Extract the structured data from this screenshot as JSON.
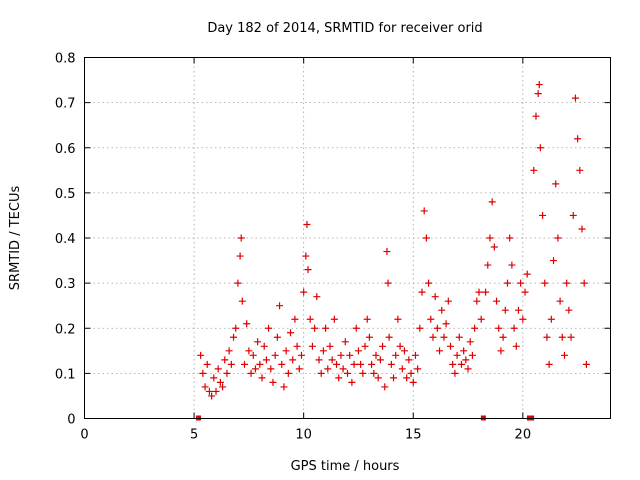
{
  "chart_data": {
    "type": "scatter",
    "title": "Day 182 of 2014, SRMTID for receiver orid",
    "xlabel": "GPS time / hours",
    "ylabel": "SRMTID / TECUs",
    "xlim": [
      0,
      24
    ],
    "ylim": [
      0,
      0.8
    ],
    "xticks": [
      0,
      5,
      10,
      15,
      20
    ],
    "yticks": [
      0,
      0.1,
      0.2,
      0.3,
      0.4,
      0.5,
      0.6,
      0.7,
      0.8
    ],
    "xtick_labels": [
      "0",
      "5",
      "10",
      "15",
      "20"
    ],
    "ytick_labels": [
      "0",
      "0.1",
      "0.2",
      "0.3",
      "0.4",
      "0.5",
      "0.6",
      "0.7",
      "0.8"
    ],
    "grid": true,
    "marker": "+",
    "color": "#e00000",
    "data_gaps": [
      [
        5.2,
        0
      ],
      [
        18.2,
        0
      ],
      [
        20.3,
        0
      ],
      [
        20.4,
        0
      ]
    ],
    "points": [
      [
        5.3,
        0.14
      ],
      [
        5.4,
        0.1
      ],
      [
        5.5,
        0.07
      ],
      [
        5.6,
        0.12
      ],
      [
        5.7,
        0.06
      ],
      [
        5.8,
        0.05
      ],
      [
        5.9,
        0.09
      ],
      [
        6.0,
        0.06
      ],
      [
        6.1,
        0.11
      ],
      [
        6.2,
        0.08
      ],
      [
        6.3,
        0.07
      ],
      [
        6.4,
        0.13
      ],
      [
        6.5,
        0.1
      ],
      [
        6.6,
        0.15
      ],
      [
        6.7,
        0.12
      ],
      [
        6.8,
        0.18
      ],
      [
        6.9,
        0.2
      ],
      [
        7.0,
        0.3
      ],
      [
        7.1,
        0.36
      ],
      [
        7.15,
        0.4
      ],
      [
        7.2,
        0.26
      ],
      [
        7.3,
        0.12
      ],
      [
        7.4,
        0.21
      ],
      [
        7.5,
        0.15
      ],
      [
        7.6,
        0.1
      ],
      [
        7.7,
        0.14
      ],
      [
        7.8,
        0.11
      ],
      [
        7.9,
        0.17
      ],
      [
        8.0,
        0.12
      ],
      [
        8.1,
        0.09
      ],
      [
        8.2,
        0.16
      ],
      [
        8.3,
        0.13
      ],
      [
        8.4,
        0.2
      ],
      [
        8.5,
        0.11
      ],
      [
        8.6,
        0.08
      ],
      [
        8.7,
        0.14
      ],
      [
        8.8,
        0.18
      ],
      [
        8.9,
        0.25
      ],
      [
        9.0,
        0.12
      ],
      [
        9.1,
        0.07
      ],
      [
        9.2,
        0.15
      ],
      [
        9.3,
        0.1
      ],
      [
        9.4,
        0.19
      ],
      [
        9.5,
        0.13
      ],
      [
        9.6,
        0.22
      ],
      [
        9.7,
        0.16
      ],
      [
        9.8,
        0.11
      ],
      [
        9.9,
        0.14
      ],
      [
        10.0,
        0.28
      ],
      [
        10.1,
        0.36
      ],
      [
        10.15,
        0.43
      ],
      [
        10.2,
        0.33
      ],
      [
        10.3,
        0.22
      ],
      [
        10.4,
        0.16
      ],
      [
        10.5,
        0.2
      ],
      [
        10.6,
        0.27
      ],
      [
        10.7,
        0.13
      ],
      [
        10.8,
        0.1
      ],
      [
        10.9,
        0.15
      ],
      [
        11.0,
        0.2
      ],
      [
        11.1,
        0.11
      ],
      [
        11.2,
        0.16
      ],
      [
        11.3,
        0.13
      ],
      [
        11.4,
        0.22
      ],
      [
        11.5,
        0.12
      ],
      [
        11.6,
        0.09
      ],
      [
        11.7,
        0.14
      ],
      [
        11.8,
        0.11
      ],
      [
        11.9,
        0.17
      ],
      [
        12.0,
        0.1
      ],
      [
        12.1,
        0.14
      ],
      [
        12.2,
        0.08
      ],
      [
        12.3,
        0.12
      ],
      [
        12.4,
        0.2
      ],
      [
        12.5,
        0.15
      ],
      [
        12.6,
        0.12
      ],
      [
        12.7,
        0.1
      ],
      [
        12.8,
        0.16
      ],
      [
        12.9,
        0.22
      ],
      [
        13.0,
        0.18
      ],
      [
        13.1,
        0.12
      ],
      [
        13.2,
        0.1
      ],
      [
        13.3,
        0.14
      ],
      [
        13.4,
        0.09
      ],
      [
        13.5,
        0.13
      ],
      [
        13.6,
        0.16
      ],
      [
        13.7,
        0.07
      ],
      [
        13.8,
        0.37
      ],
      [
        13.85,
        0.3
      ],
      [
        13.9,
        0.18
      ],
      [
        14.0,
        0.12
      ],
      [
        14.1,
        0.09
      ],
      [
        14.2,
        0.14
      ],
      [
        14.3,
        0.22
      ],
      [
        14.4,
        0.16
      ],
      [
        14.5,
        0.11
      ],
      [
        14.6,
        0.15
      ],
      [
        14.7,
        0.09
      ],
      [
        14.8,
        0.13
      ],
      [
        14.9,
        0.1
      ],
      [
        15.0,
        0.08
      ],
      [
        15.1,
        0.14
      ],
      [
        15.2,
        0.11
      ],
      [
        15.3,
        0.2
      ],
      [
        15.4,
        0.28
      ],
      [
        15.5,
        0.46
      ],
      [
        15.6,
        0.4
      ],
      [
        15.7,
        0.3
      ],
      [
        15.8,
        0.22
      ],
      [
        15.9,
        0.18
      ],
      [
        16.0,
        0.27
      ],
      [
        16.1,
        0.2
      ],
      [
        16.2,
        0.15
      ],
      [
        16.3,
        0.24
      ],
      [
        16.4,
        0.18
      ],
      [
        16.5,
        0.21
      ],
      [
        16.6,
        0.26
      ],
      [
        16.7,
        0.16
      ],
      [
        16.8,
        0.12
      ],
      [
        16.9,
        0.1
      ],
      [
        17.0,
        0.14
      ],
      [
        17.1,
        0.18
      ],
      [
        17.2,
        0.12
      ],
      [
        17.3,
        0.15
      ],
      [
        17.4,
        0.13
      ],
      [
        17.5,
        0.11
      ],
      [
        17.6,
        0.17
      ],
      [
        17.7,
        0.14
      ],
      [
        17.8,
        0.2
      ],
      [
        17.9,
        0.26
      ],
      [
        18.0,
        0.28
      ],
      [
        18.1,
        0.22
      ],
      [
        18.3,
        0.28
      ],
      [
        18.4,
        0.34
      ],
      [
        18.5,
        0.4
      ],
      [
        18.6,
        0.48
      ],
      [
        18.7,
        0.38
      ],
      [
        18.8,
        0.26
      ],
      [
        18.9,
        0.2
      ],
      [
        19.0,
        0.15
      ],
      [
        19.1,
        0.18
      ],
      [
        19.2,
        0.24
      ],
      [
        19.3,
        0.3
      ],
      [
        19.4,
        0.4
      ],
      [
        19.5,
        0.34
      ],
      [
        19.6,
        0.2
      ],
      [
        19.7,
        0.16
      ],
      [
        19.8,
        0.24
      ],
      [
        19.9,
        0.3
      ],
      [
        20.0,
        0.22
      ],
      [
        20.1,
        0.28
      ],
      [
        20.2,
        0.32
      ],
      [
        20.5,
        0.55
      ],
      [
        20.6,
        0.67
      ],
      [
        20.7,
        0.72
      ],
      [
        20.75,
        0.74
      ],
      [
        20.8,
        0.6
      ],
      [
        20.9,
        0.45
      ],
      [
        21.0,
        0.3
      ],
      [
        21.1,
        0.18
      ],
      [
        21.2,
        0.12
      ],
      [
        21.3,
        0.22
      ],
      [
        21.4,
        0.35
      ],
      [
        21.5,
        0.52
      ],
      [
        21.6,
        0.4
      ],
      [
        21.7,
        0.26
      ],
      [
        21.8,
        0.18
      ],
      [
        21.9,
        0.14
      ],
      [
        22.0,
        0.3
      ],
      [
        22.1,
        0.24
      ],
      [
        22.2,
        0.18
      ],
      [
        22.3,
        0.45
      ],
      [
        22.4,
        0.71
      ],
      [
        22.5,
        0.62
      ],
      [
        22.6,
        0.55
      ],
      [
        22.7,
        0.42
      ],
      [
        22.8,
        0.3
      ],
      [
        22.9,
        0.12
      ]
    ]
  }
}
